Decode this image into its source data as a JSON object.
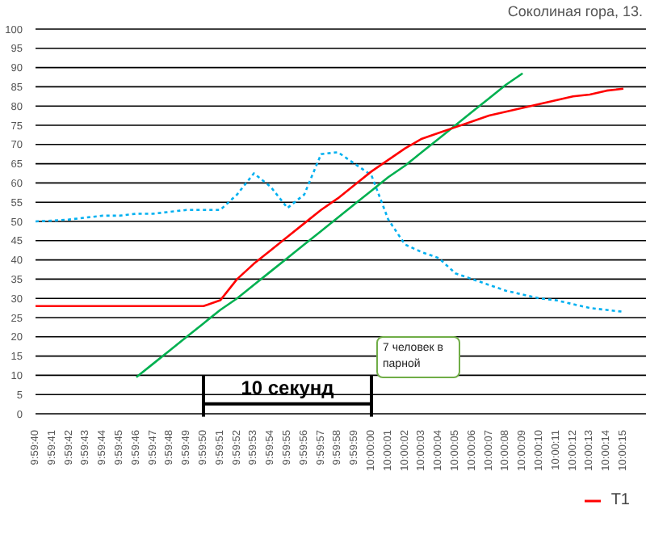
{
  "chart_data": {
    "type": "line",
    "title": "Соколиная гора, 13.",
    "categories": [
      "9:59:40",
      "9:59:41",
      "9:59:42",
      "9:59:43",
      "9:59:44",
      "9:59:45",
      "9:59:46",
      "9:59:47",
      "9:59:48",
      "9:59:49",
      "9:59:50",
      "9:59:51",
      "9:59:52",
      "9:59:53",
      "9:59:54",
      "9:59:55",
      "9:59:56",
      "9:59:57",
      "9:59:58",
      "9:59:59",
      "10:00:00",
      "10:00:01",
      "10:00:02",
      "10:00:03",
      "10:00:04",
      "10:00:05",
      "10:00:06",
      "10:00:07",
      "10:00:08",
      "10:00:09",
      "10:00:10",
      "10:00:11",
      "10:00:12",
      "10:00:13",
      "10:00:14",
      "10:00:15"
    ],
    "series": [
      {
        "color": "#00b0f0",
        "line_style": "dotted",
        "values": [
          50,
          50.2,
          50.5,
          51,
          51.5,
          51.5,
          52,
          52,
          52.5,
          53,
          53,
          53,
          57,
          62.5,
          59,
          53.5,
          57,
          67.5,
          68,
          65,
          62,
          50.5,
          44,
          42,
          40.5,
          36.5,
          35,
          33.5,
          32,
          31,
          30,
          29.5,
          28.5,
          27.5,
          27,
          26.5
        ]
      },
      {
        "color": "#00b050",
        "line_style": "solid",
        "values": [
          null,
          null,
          null,
          null,
          null,
          null,
          9.5,
          13,
          16.5,
          20,
          23.5,
          27,
          30,
          33.5,
          37,
          40.5,
          44,
          47.5,
          51,
          54.5,
          58,
          61.5,
          64.5,
          68,
          71.5,
          75,
          78.5,
          82,
          85.5,
          88.5,
          null,
          null,
          null,
          null,
          null,
          null
        ]
      },
      {
        "name": "T1",
        "color": "#ff0000",
        "line_style": "solid",
        "values": [
          28,
          28,
          28,
          28,
          28,
          28,
          28,
          28,
          28,
          28,
          28,
          29.5,
          35,
          39,
          42.5,
          46,
          49.5,
          53,
          56,
          59.5,
          63,
          66,
          69,
          71.5,
          73,
          74.5,
          76,
          77.5,
          78.5,
          79.5,
          80.5,
          81.5,
          82.5,
          83,
          84,
          84.5
        ]
      }
    ],
    "ylim": [
      0,
      100
    ],
    "yticks": [
      0,
      5,
      10,
      15,
      20,
      25,
      30,
      35,
      40,
      45,
      50,
      55,
      60,
      65,
      70,
      75,
      80,
      85,
      90,
      95,
      100
    ],
    "grid": "y",
    "legend": "bottom right",
    "marker": "none",
    "annotations": [
      "10 секунд",
      "7 человек в парной"
    ]
  }
}
